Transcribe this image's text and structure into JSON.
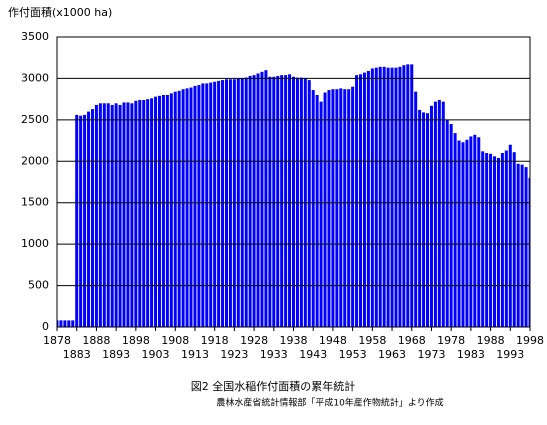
{
  "chart_data": {
    "type": "bar",
    "ylabel": "作付面積(x1000 ha)",
    "title": "図2 全国水稲作付面積の累年統計",
    "source": "農林水産省統計情報部「平成10年産作物統計」より作成",
    "color": "#0000ff",
    "grid": true,
    "x": [
      1878,
      1879,
      1880,
      1881,
      1882,
      1883,
      1884,
      1885,
      1886,
      1887,
      1888,
      1889,
      1890,
      1891,
      1892,
      1893,
      1894,
      1895,
      1896,
      1897,
      1898,
      1899,
      1900,
      1901,
      1902,
      1903,
      1904,
      1905,
      1906,
      1907,
      1908,
      1909,
      1910,
      1911,
      1912,
      1913,
      1914,
      1915,
      1916,
      1917,
      1918,
      1919,
      1920,
      1921,
      1922,
      1923,
      1924,
      1925,
      1926,
      1927,
      1928,
      1929,
      1930,
      1931,
      1932,
      1933,
      1934,
      1935,
      1936,
      1937,
      1938,
      1939,
      1940,
      1941,
      1942,
      1943,
      1944,
      1945,
      1946,
      1947,
      1948,
      1949,
      1950,
      1951,
      1952,
      1953,
      1954,
      1955,
      1956,
      1957,
      1958,
      1959,
      1960,
      1961,
      1962,
      1963,
      1964,
      1965,
      1966,
      1967,
      1968,
      1969,
      1970,
      1971,
      1972,
      1973,
      1974,
      1975,
      1976,
      1977,
      1978,
      1979,
      1980,
      1981,
      1982,
      1983,
      1984,
      1985,
      1986,
      1987,
      1988,
      1989,
      1990,
      1991,
      1992,
      1993,
      1994,
      1995,
      1996,
      1997,
      1998
    ],
    "values": [
      80,
      80,
      80,
      80,
      80,
      2560,
      2550,
      2560,
      2600,
      2630,
      2680,
      2700,
      2700,
      2700,
      2680,
      2700,
      2680,
      2710,
      2710,
      2700,
      2730,
      2740,
      2740,
      2750,
      2760,
      2780,
      2790,
      2800,
      2800,
      2820,
      2840,
      2850,
      2870,
      2880,
      2890,
      2910,
      2920,
      2940,
      2940,
      2950,
      2960,
      2970,
      2980,
      2990,
      2990,
      2990,
      3000,
      3000,
      3010,
      3030,
      3040,
      3060,
      3080,
      3100,
      3020,
      3020,
      3030,
      3040,
      3040,
      3050,
      3020,
      3010,
      3010,
      3000,
      2980,
      2860,
      2800,
      2720,
      2830,
      2860,
      2870,
      2870,
      2880,
      2870,
      2870,
      2900,
      3040,
      3050,
      3070,
      3090,
      3120,
      3130,
      3140,
      3140,
      3130,
      3130,
      3130,
      3140,
      3160,
      3170,
      3170,
      2840,
      2620,
      2590,
      2580,
      2670,
      2720,
      2740,
      2720,
      2500,
      2450,
      2340,
      2250,
      2230,
      2260,
      2300,
      2320,
      2290,
      2120,
      2100,
      2090,
      2060,
      2040,
      2100,
      2130,
      2200,
      2110,
      1970,
      1960,
      1930,
      1800
    ],
    "xlim": [
      1878,
      1998
    ],
    "xticks": [
      1878,
      1883,
      1888,
      1893,
      1898,
      1903,
      1908,
      1913,
      1918,
      1923,
      1928,
      1933,
      1938,
      1943,
      1948,
      1953,
      1958,
      1963,
      1968,
      1973,
      1978,
      1983,
      1988,
      1993,
      1998
    ],
    "ylim": [
      0,
      3500
    ],
    "yticks": [
      0,
      500,
      1000,
      1500,
      2000,
      2500,
      3000,
      3500
    ]
  }
}
